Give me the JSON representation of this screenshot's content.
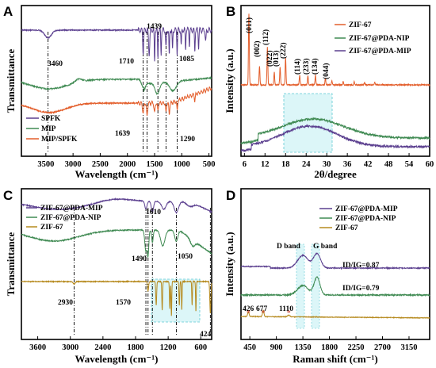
{
  "chart_data": [
    {
      "type": "line",
      "panel": "A",
      "xlabel": "Wavelength (cm⁻¹)",
      "ylabel": "Transmittance",
      "x_reversed": true,
      "xlim": [
        3950,
        450
      ],
      "xticks": [
        3500,
        3000,
        2500,
        2000,
        1500,
        1000,
        500
      ],
      "legend_placement": "bottom-left",
      "series": [
        {
          "name": "SPFK",
          "color": "#5b3f8f"
        },
        {
          "name": "MIP",
          "color": "#3f8a52"
        },
        {
          "name": "MIP/SPFK",
          "color": "#e35d2a"
        }
      ],
      "annotations": [
        "3460",
        "1710",
        "1439",
        "1085",
        "1639",
        "1290"
      ],
      "reference_lines": [
        3460,
        1710,
        1639,
        1439,
        1290,
        1085
      ]
    },
    {
      "type": "line",
      "panel": "B",
      "xlabel": "2θ/degree",
      "ylabel": "Intensity (a.u.)",
      "xlim": [
        5,
        60
      ],
      "xticks": [
        6,
        12,
        18,
        24,
        30,
        36,
        42,
        48,
        54,
        60
      ],
      "legend_placement": "top-right",
      "series": [
        {
          "name": "ZIF-67",
          "color": "#e35d2a"
        },
        {
          "name": "ZIF-67@PDA-NIP",
          "color": "#3f8a52"
        },
        {
          "name": "ZIF-67@PDA-MIP",
          "color": "#5b3f8f"
        }
      ],
      "annotations": [
        "(011)",
        "(002)",
        "(112)",
        "(022)",
        "(013)",
        "(222)",
        "(114)",
        "(233)",
        "(134)",
        "(044)"
      ],
      "shaded_region": [
        18,
        32
      ]
    },
    {
      "type": "line",
      "panel": "C",
      "xlabel": "Wavelength (cm⁻¹)",
      "ylabel": "Transmittance",
      "x_reversed": true,
      "xlim": [
        3900,
        400
      ],
      "xticks": [
        3600,
        3000,
        2400,
        1800,
        1200,
        600
      ],
      "legend_placement": "top-left",
      "series": [
        {
          "name": "ZIF-67@PDA-MIP",
          "color": "#5b3f8f"
        },
        {
          "name": "ZIF-67@PDA-NIP",
          "color": "#3f8a52"
        },
        {
          "name": "ZIF-67",
          "color": "#b68a1e"
        }
      ],
      "annotations": [
        "1610",
        "1490",
        "1050",
        "2930",
        "1570",
        "424"
      ],
      "reference_lines": [
        2930,
        1610,
        1570,
        1490,
        1050,
        424
      ],
      "shaded_region": [
        1500,
        600
      ]
    },
    {
      "type": "line",
      "panel": "D",
      "xlabel": "Raman shift (cm⁻¹)",
      "ylabel": "Intensity (a.u.)",
      "xlim": [
        300,
        3500
      ],
      "xticks": [
        450,
        900,
        1350,
        1800,
        2250,
        2700,
        3150
      ],
      "legend_placement": "top-right",
      "series": [
        {
          "name": "ZIF-67@PDA-MIP",
          "color": "#5b3f8f"
        },
        {
          "name": "ZIF-67@PDA-NIP",
          "color": "#3f8a52"
        },
        {
          "name": "ZIF-67",
          "color": "#b68a1e"
        }
      ],
      "annotations": [
        "D band",
        "G band",
        "ID/IG=0.87",
        "ID/IG=0.79",
        "426",
        "677",
        "1110"
      ],
      "marker_peaks": [
        426,
        677,
        1110
      ],
      "band_peaks": {
        "D": 1350,
        "G": 1590
      }
    }
  ],
  "panels": {
    "A": {
      "label": "A"
    },
    "B": {
      "label": "B"
    },
    "C": {
      "label": "C"
    },
    "D": {
      "label": "D"
    }
  }
}
